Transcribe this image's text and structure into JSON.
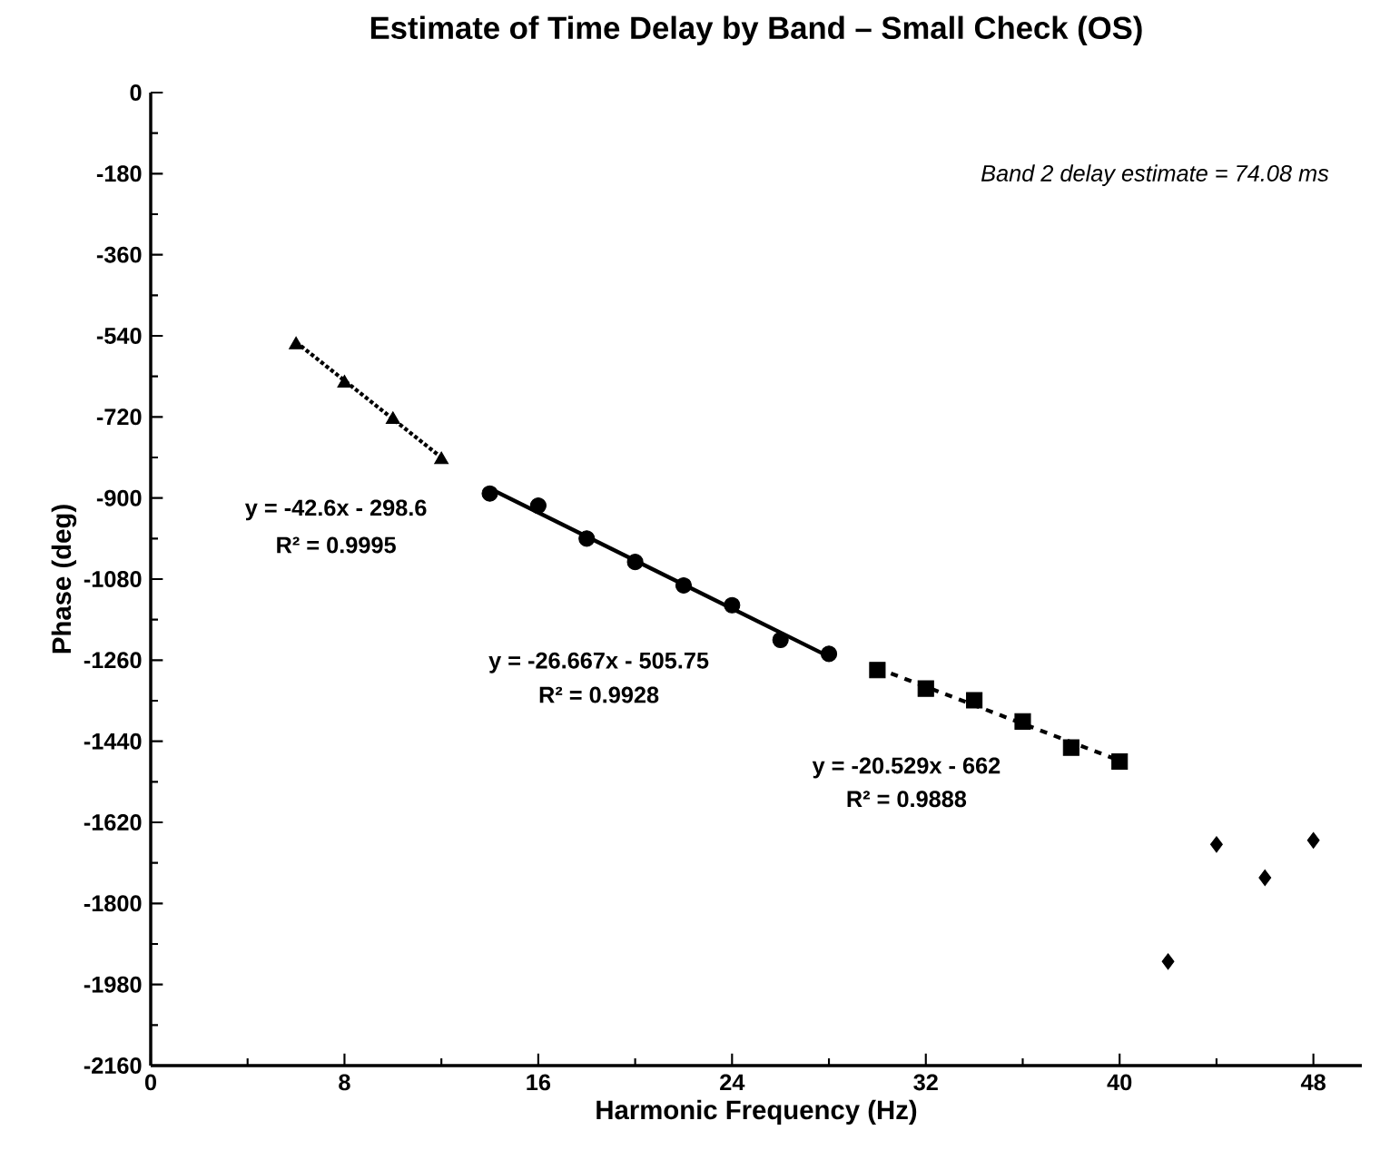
{
  "chart_data": {
    "type": "scatter",
    "title": "Estimate of Time Delay by Band – Small Check (OS)",
    "xlabel": "Harmonic Frequency (Hz)",
    "ylabel": "Phase (deg)",
    "xlim": [
      0,
      50
    ],
    "xticks": [
      0,
      8,
      16,
      24,
      32,
      40,
      48
    ],
    "ylim": [
      -2160,
      0
    ],
    "yticks": [
      -2160,
      -1980,
      -1800,
      -1620,
      -1440,
      -1260,
      -1080,
      -900,
      -720,
      -540,
      -360,
      -180,
      0
    ],
    "grid": false,
    "series": [
      {
        "marker": "triangle",
        "color": "#000000",
        "x": [
          6,
          8,
          10,
          12
        ],
        "values": [
          -560,
          -645,
          -726,
          -815
        ]
      },
      {
        "type": "line",
        "marker": "none",
        "line_style": "dotted",
        "color": "#000000",
        "x": [
          6,
          12
        ],
        "values": [
          -554,
          -810
        ]
      },
      {
        "marker": "circle",
        "color": "#000000",
        "x": [
          14,
          16,
          18,
          20,
          22,
          24,
          26,
          28
        ],
        "values": [
          -890,
          -917,
          -990,
          -1042,
          -1094,
          -1138,
          -1215,
          -1246
        ]
      },
      {
        "type": "line",
        "marker": "none",
        "line_style": "solid",
        "color": "#000000",
        "x": [
          14,
          28
        ],
        "values": [
          -879,
          -1252
        ]
      },
      {
        "marker": "square",
        "color": "#000000",
        "x": [
          30,
          32,
          34,
          36,
          38,
          40
        ],
        "values": [
          -1282,
          -1323,
          -1349,
          -1396,
          -1454,
          -1485
        ]
      },
      {
        "type": "line",
        "marker": "none",
        "line_style": "dashed",
        "color": "#000000",
        "x": [
          30,
          40
        ],
        "values": [
          -1278,
          -1483
        ]
      },
      {
        "marker": "diamond",
        "color": "#000000",
        "x": [
          42,
          44,
          46,
          48
        ],
        "values": [
          -1929,
          -1669,
          -1743,
          -1660
        ]
      }
    ],
    "annotations": [
      "y = -42.6x - 298.6",
      "R² = 0.9995",
      "y = -26.667x - 505.75",
      "R² = 0.9928",
      "y = -20.529x - 662",
      "R² = 0.9888",
      "*Band 2 delay estimate = 74.08 ms*"
    ]
  }
}
